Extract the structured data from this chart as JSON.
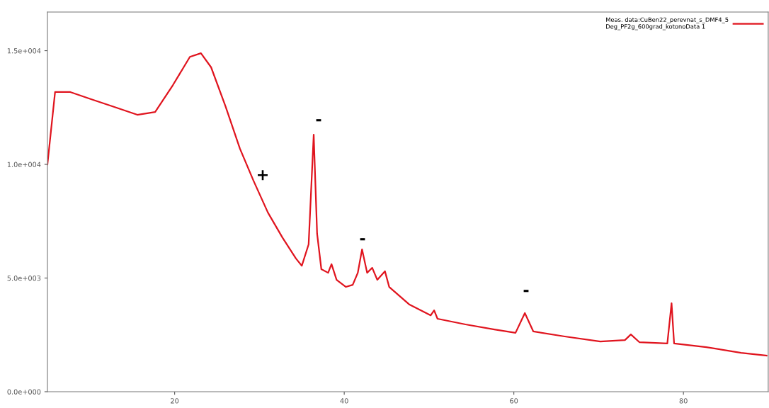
{
  "chart_data": {
    "type": "line",
    "xlim": [
      5,
      90
    ],
    "xticks": [
      20,
      40,
      60,
      80
    ],
    "ylim": [
      0,
      16700
    ],
    "yticks": [
      {
        "value": 0,
        "label": "0.0e+000"
      },
      {
        "value": 5000,
        "label": "5.0e+003"
      },
      {
        "value": 10000,
        "label": "1.0e+004"
      },
      {
        "value": 15000,
        "label": "1.5e+004"
      }
    ],
    "grid": false,
    "legend": "top right",
    "marker": "none",
    "line_style": "solid",
    "series": [
      {
        "name": "Meas. data:CuBen22_perevnat_s_DMF4_5\nDeg_PF2g_600grad_kotonoData 1",
        "color": "#e0141e",
        "x": [
          5,
          5.9,
          7.7,
          10.2,
          12.7,
          15.6,
          17.7,
          19.8,
          21.8,
          23.1,
          24.3,
          26,
          27.7,
          29.3,
          31,
          32.7,
          34.3,
          35,
          35.8,
          36.4,
          36.8,
          37.3,
          38.1,
          38.5,
          39.1,
          40.2,
          41,
          41.6,
          42.1,
          42.7,
          43.3,
          43.9,
          44.8,
          45.3,
          47.7,
          50.2,
          50.6,
          51,
          54.3,
          57.7,
          60.2,
          61.3,
          62.3,
          66,
          70.2,
          73.1,
          73.8,
          74.8,
          78.1,
          78.6,
          78.9,
          82.7,
          86.8,
          89.8
        ],
        "values": [
          10000,
          13180,
          13180,
          12860,
          12550,
          12180,
          12300,
          13490,
          14730,
          14890,
          14270,
          12550,
          10690,
          9280,
          7880,
          6790,
          5860,
          5540,
          6480,
          11310,
          6950,
          5390,
          5230,
          5610,
          4920,
          4610,
          4700,
          5230,
          6260,
          5230,
          5450,
          4920,
          5300,
          4610,
          3830,
          3360,
          3580,
          3210,
          2960,
          2740,
          2590,
          3460,
          2650,
          2430,
          2210,
          2270,
          2520,
          2180,
          2120,
          3890,
          2120,
          1960,
          1710,
          1590
        ]
      }
    ],
    "annotations": [
      "-",
      "-",
      "-",
      "+"
    ]
  }
}
